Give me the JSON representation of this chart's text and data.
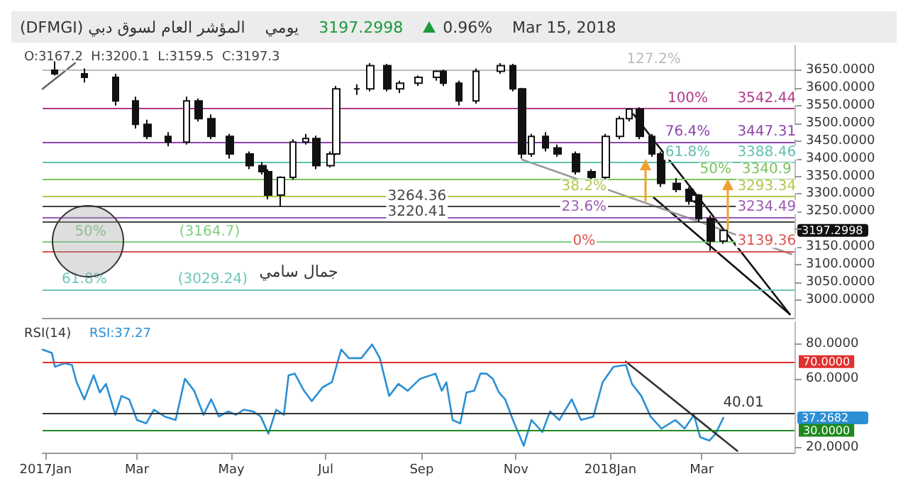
{
  "chart_data": [
    {
      "type": "candlestick",
      "title": "المؤشر العام لسوق دبي (DFMGI)",
      "subtitle": "O:3167.2  H:3200.1  L:3159.5  C:3197.3",
      "x": [
        "2017-01-07",
        "2017-01-26",
        "2017-02-15",
        "2017-02-28",
        "2017-03-08",
        "2017-03-21",
        "2017-04-02",
        "2017-04-10",
        "2017-04-18",
        "2017-04-30",
        "2017-05-13",
        "2017-05-21",
        "2017-05-25",
        "2017-06-02",
        "2017-06-10",
        "2017-06-18",
        "2017-06-25",
        "2017-07-04",
        "2017-07-08",
        "2017-07-21",
        "2017-07-30",
        "2017-08-10",
        "2017-08-18",
        "2017-08-30",
        "2017-09-11",
        "2017-09-15",
        "2017-09-25",
        "2017-10-06",
        "2017-10-22",
        "2017-10-30",
        "2017-11-05",
        "2017-11-11",
        "2017-11-20",
        "2017-11-28",
        "2017-12-10",
        "2017-12-20",
        "2017-12-29",
        "2018-01-07",
        "2018-01-13",
        "2018-01-20",
        "2018-01-28",
        "2018-02-03",
        "2018-02-13",
        "2018-02-21",
        "2018-02-25",
        "2018-02-27",
        "2018-03-07",
        "2018-03-15"
      ],
      "ohlc": [
        [
          3650,
          3675,
          3635,
          3640
        ],
        [
          3640,
          3655,
          3615,
          3630
        ],
        [
          3630,
          3640,
          3550,
          3563
        ],
        [
          3563,
          3575,
          3485,
          3497
        ],
        [
          3497,
          3510,
          3455,
          3463
        ],
        [
          3463,
          3475,
          3435,
          3447
        ],
        [
          3447,
          3575,
          3440,
          3563
        ],
        [
          3563,
          3570,
          3505,
          3513
        ],
        [
          3513,
          3525,
          3455,
          3463
        ],
        [
          3463,
          3470,
          3400,
          3413
        ],
        [
          3413,
          3420,
          3370,
          3380
        ],
        [
          3380,
          3390,
          3355,
          3363
        ],
        [
          3363,
          3370,
          3285,
          3297
        ],
        [
          3297,
          3350,
          3264.36,
          3347
        ],
        [
          3347,
          3455,
          3340,
          3447
        ],
        [
          3447,
          3470,
          3440,
          3457
        ],
        [
          3457,
          3465,
          3370,
          3380
        ],
        [
          3380,
          3420,
          3375,
          3413
        ],
        [
          3413,
          3605,
          3410,
          3597
        ],
        [
          3597,
          3610,
          3580,
          3597
        ],
        [
          3597,
          3670,
          3590,
          3663
        ],
        [
          3663,
          3668,
          3590,
          3597
        ],
        [
          3597,
          3620,
          3585,
          3613
        ],
        [
          3613,
          3635,
          3605,
          3630
        ],
        [
          3630,
          3650,
          3620,
          3647
        ],
        [
          3647,
          3652,
          3605,
          3613
        ],
        [
          3613,
          3620,
          3550,
          3563
        ],
        [
          3563,
          3655,
          3555,
          3647
        ],
        [
          3647,
          3670,
          3640,
          3663
        ],
        [
          3663,
          3668,
          3590,
          3597
        ],
        [
          3597,
          3600,
          3400,
          3413
        ],
        [
          3413,
          3470,
          3405,
          3463
        ],
        [
          3463,
          3475,
          3420,
          3430
        ],
        [
          3430,
          3440,
          3405,
          3413
        ],
        [
          3413,
          3420,
          3355,
          3363
        ],
        [
          3363,
          3370,
          3335,
          3347
        ],
        [
          3347,
          3470,
          3340,
          3463
        ],
        [
          3463,
          3520,
          3455,
          3513
        ],
        [
          3513,
          3542.44,
          3505,
          3540
        ],
        [
          3540,
          3545,
          3455,
          3463
        ],
        [
          3463,
          3470,
          3405,
          3413
        ],
        [
          3413,
          3420,
          3320,
          3330
        ],
        [
          3330,
          3345,
          3305,
          3313
        ],
        [
          3313,
          3320,
          3270,
          3280
        ],
        [
          3280,
          3305,
          3275,
          3297
        ],
        [
          3297,
          3300,
          3220,
          3230
        ],
        [
          3230,
          3240,
          3139.36,
          3167.2
        ],
        [
          3167.2,
          3200.1,
          3159.5,
          3197.3
        ]
      ],
      "series": [
        {
          "type": "line",
          "color": "#111111",
          "x": [
            "2018-01-16",
            "2018-04-27"
          ],
          "values": [
            3525,
            2960
          ]
        },
        {
          "type": "line",
          "color": "#111111",
          "x": [
            "2018-01-29",
            "2018-04-27"
          ],
          "values": [
            3290,
            2960
          ]
        },
        {
          "type": "line",
          "color": "#999999",
          "x": [
            "2017-11-05",
            "2018-04-28"
          ],
          "values": [
            3397,
            3130
          ]
        },
        {
          "type": "line",
          "color": "#666666",
          "x": [
            "2016-12-30",
            "2017-01-20"
          ],
          "values": [
            3597,
            3670
          ]
        }
      ],
      "xlim": [
        "2016-12-30",
        "2018-04-30"
      ],
      "ylim": [
        2950,
        3720
      ],
      "yticks": [
        {
          "value": 3000,
          "label": "3000.0000"
        },
        {
          "value": 3050,
          "label": "3050.0000"
        },
        {
          "value": 3100,
          "label": "3100.0000"
        },
        {
          "value": 3150,
          "label": "3150.0000"
        },
        {
          "value": 3200,
          "label": null
        },
        {
          "value": 3250,
          "label": "3250.0000"
        },
        {
          "value": 3300,
          "label": "3300.0000"
        },
        {
          "value": 3350,
          "label": "3350.0000"
        },
        {
          "value": 3400,
          "label": "3400.0000"
        },
        {
          "value": 3450,
          "label": "3450.0000"
        },
        {
          "value": 3500,
          "label": "3500.0000"
        },
        {
          "value": 3550,
          "label": "3550.0000"
        },
        {
          "value": 3600,
          "label": "3600.0000"
        },
        {
          "value": 3650,
          "label": "3650.0000"
        }
      ],
      "tick_labels": "y",
      "ref_lines": [
        {
          "axis": "y",
          "value": 3652.08,
          "color": "#bbbbbb"
        },
        {
          "axis": "y",
          "value": 3542.44,
          "color": "#b03a8a"
        },
        {
          "axis": "y",
          "value": 3447.31,
          "color": "#8e44ad"
        },
        {
          "axis": "y",
          "value": 3388.46,
          "color": "#5fbfae"
        },
        {
          "axis": "y",
          "value": 3340.9,
          "color": "#7cc35a"
        },
        {
          "axis": "y",
          "value": 3293.34,
          "color": "#b8c44a"
        },
        {
          "axis": "y",
          "value": 3234.49,
          "color": "#9b59b6"
        },
        {
          "axis": "y",
          "value": 3139.36,
          "color": "#d9534f"
        },
        {
          "axis": "y",
          "value": 3264.36,
          "color": "#444444"
        },
        {
          "axis": "y",
          "value": 3220.41,
          "color": "#444444"
        },
        {
          "axis": "y",
          "value": 3164.7,
          "color": "#7fcf7f"
        },
        {
          "axis": "y",
          "value": 3029.24,
          "color": "#6cc7b8"
        }
      ],
      "annotations": [
        "يومي",
        "3197.2998",
        "0.96%",
        "Mar 15, 2018",
        {
          "text": "127.2%",
          "x": "2018-01-29",
          "y": 3652.08
        },
        {
          "text": "100%",
          "x": "2018-02-20",
          "y": 3542.44
        },
        {
          "text": "3542.44",
          "x": "2018-04-12",
          "y": 3542.44
        },
        {
          "text": "76.4%",
          "x": "2018-02-20",
          "y": 3447.31
        },
        {
          "text": "3447.31",
          "x": "2018-04-12",
          "y": 3447.31
        },
        {
          "text": "61.8%",
          "x": "2018-02-20",
          "y": 3388.46
        },
        {
          "text": "3388.46",
          "x": "2018-04-12",
          "y": 3388.46
        },
        {
          "text": "50%",
          "x": "2018-03-10",
          "y": 3340.9
        },
        {
          "text": "3340.9",
          "x": "2018-04-12",
          "y": 3340.9
        },
        {
          "text": "38.2%",
          "x": "2017-12-15",
          "y": 3293.34
        },
        {
          "text": "3293.34",
          "x": "2018-04-12",
          "y": 3293.34
        },
        {
          "text": "23.6%",
          "x": "2017-12-15",
          "y": 3234.49
        },
        {
          "text": "3234.49",
          "x": "2018-04-12",
          "y": 3234.49
        },
        {
          "text": "0%",
          "x": "2017-12-15",
          "y": 3139.36
        },
        {
          "text": "3139.36",
          "x": "2018-04-12",
          "y": 3139.36
        },
        {
          "text": "3264.36",
          "x": "2017-08-29",
          "y": 3264.36
        },
        {
          "text": "3220.41",
          "x": "2017-08-29",
          "y": 3220.41
        },
        {
          "text": "50%",
          "x": "2017-01-30",
          "y": 3164.7
        },
        {
          "text": "(3164.7)",
          "x": "2017-04-17",
          "y": 3164.7
        },
        {
          "text": "61.8%",
          "x": "2017-01-26",
          "y": 3029.24
        },
        {
          "text": "(3029.24)",
          "x": "2017-04-19",
          "y": 3029.24
        },
        "جمال سامي",
        "3197.2998"
      ]
    },
    {
      "type": "line",
      "title": "RSI(14)",
      "subtitle": "RSI:37.27",
      "series": [
        {
          "color": "#2b8fd6",
          "x": [
            "2016-12-30",
            "2017-01-05",
            "2017-01-07",
            "2017-01-13",
            "2017-01-18",
            "2017-01-21",
            "2017-01-26",
            "2017-02-01",
            "2017-02-05",
            "2017-02-09",
            "2017-02-15",
            "2017-02-19",
            "2017-02-24",
            "2017-03-01",
            "2017-03-07",
            "2017-03-12",
            "2017-03-19",
            "2017-03-26",
            "2017-04-01",
            "2017-04-07",
            "2017-04-13",
            "2017-04-18",
            "2017-04-23",
            "2017-04-29",
            "2017-05-04",
            "2017-05-09",
            "2017-05-15",
            "2017-05-20",
            "2017-05-25",
            "2017-05-30",
            "2017-06-04",
            "2017-06-07",
            "2017-06-11",
            "2017-06-17",
            "2017-06-22",
            "2017-06-29",
            "2017-07-05",
            "2017-07-11",
            "2017-07-16",
            "2017-07-24",
            "2017-07-31",
            "2017-08-05",
            "2017-08-11",
            "2017-08-17",
            "2017-08-23",
            "2017-08-31",
            "2017-09-10",
            "2017-09-14",
            "2017-09-17",
            "2017-09-21",
            "2017-09-26",
            "2017-09-30",
            "2017-10-05",
            "2017-10-09",
            "2017-10-13",
            "2017-10-17",
            "2017-10-21",
            "2017-10-25",
            "2017-10-30",
            "2017-11-06",
            "2017-11-11",
            "2017-11-18",
            "2017-11-23",
            "2017-11-29",
            "2017-12-07",
            "2017-12-13",
            "2017-12-21",
            "2017-12-27",
            "2018-01-03",
            "2018-01-11",
            "2018-01-15",
            "2018-01-21",
            "2018-01-27",
            "2018-02-03",
            "2018-02-12",
            "2018-02-18",
            "2018-02-24",
            "2018-02-28",
            "2018-03-06",
            "2018-03-10",
            "2018-03-15"
          ],
          "values": [
            77,
            75,
            67,
            69,
            68,
            58,
            48,
            62,
            52,
            57,
            39,
            50,
            48,
            36,
            34,
            42,
            38,
            36,
            60,
            53,
            39,
            48,
            38,
            41,
            39,
            42,
            41,
            38,
            28,
            42,
            39,
            62,
            63,
            53,
            47,
            55,
            58,
            77,
            72,
            72,
            80,
            72,
            50,
            57,
            53,
            60,
            63,
            53,
            58,
            36,
            34,
            52,
            53,
            63,
            63,
            60,
            52,
            48,
            36,
            21,
            36,
            29,
            41,
            36,
            48,
            36,
            38,
            58,
            67,
            68,
            57,
            50,
            38,
            31,
            36,
            31,
            39,
            26,
            24,
            28,
            37.27
          ]
        },
        {
          "type": "line",
          "color": "#333333",
          "x": [
            "2018-01-11",
            "2018-03-24"
          ],
          "values": [
            70,
            18
          ]
        }
      ],
      "xlim": [
        "2016-12-30",
        "2018-04-30"
      ],
      "xticks": [
        {
          "value": "2017-01-01",
          "label": "2017Jan"
        },
        {
          "value": "2017-03-01",
          "label": "Mar"
        },
        {
          "value": "2017-05-01",
          "label": "May"
        },
        {
          "value": "2017-07-01",
          "label": "Jul"
        },
        {
          "value": "2017-09-01",
          "label": "Sep"
        },
        {
          "value": "2017-11-01",
          "label": "Nov"
        },
        {
          "value": "2018-01-01",
          "label": "2018Jan"
        },
        {
          "value": "2018-03-01",
          "label": "Mar"
        }
      ],
      "ylim": [
        17,
        93
      ],
      "yticks": [
        {
          "value": 20,
          "label": "20.0000"
        },
        {
          "value": 60,
          "label": "60.0000"
        },
        {
          "value": 80,
          "label": "80.0000"
        }
      ],
      "ref_lines": [
        {
          "axis": "y",
          "value": 70,
          "label": "70.0000",
          "color": "#e03030"
        },
        {
          "axis": "y",
          "value": 30,
          "label": "30.0000",
          "color": "#1e8a1e"
        },
        {
          "axis": "y",
          "value": 40.01,
          "color": "#333333"
        }
      ],
      "annotations": [
        {
          "text": "40.01",
          "x": "2018-03-28",
          "y": 40.01
        },
        "37.2682"
      ]
    }
  ]
}
